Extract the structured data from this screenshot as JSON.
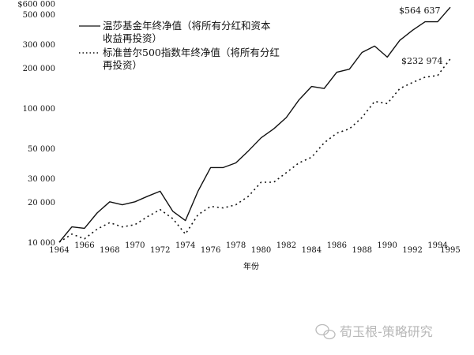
{
  "chart_data": {
    "type": "line",
    "title": "",
    "xlabel": "年份",
    "ylabel": "",
    "y_scale": "log",
    "ylim": [
      10000,
      600000
    ],
    "xlim": [
      1964,
      1995
    ],
    "grid": false,
    "legend_placement": "top-left",
    "y_ticks": [
      {
        "value": 600000,
        "label": "$600 000"
      },
      {
        "value": 500000,
        "label": "500 000"
      },
      {
        "value": 300000,
        "label": "300 000"
      },
      {
        "value": 200000,
        "label": "200 000"
      },
      {
        "value": 100000,
        "label": "100 000"
      },
      {
        "value": 50000,
        "label": "50 000"
      },
      {
        "value": 30000,
        "label": "30 000"
      },
      {
        "value": 20000,
        "label": "20 000"
      },
      {
        "value": 10000,
        "label": "10 000"
      }
    ],
    "x_ticks": [
      "1964",
      "1966",
      "1968",
      "1970",
      "1972",
      "1974",
      "1976",
      "1978",
      "1980",
      "1982",
      "1984",
      "1986",
      "1988",
      "1990",
      "1992",
      "1994",
      "1995"
    ],
    "x": [
      1964,
      1965,
      1966,
      1967,
      1968,
      1969,
      1970,
      1971,
      1972,
      1973,
      1974,
      1975,
      1976,
      1977,
      1978,
      1979,
      1980,
      1981,
      1982,
      1983,
      1984,
      1985,
      1986,
      1987,
      1988,
      1989,
      1990,
      1991,
      1992,
      1993,
      1994,
      1995
    ],
    "series": [
      {
        "name": "温莎基金年终净值（将所有分红和资本收益再投资）",
        "legend_lines": [
          "温莎基金年终净值（将所有分红和资本",
          "收益再投资）"
        ],
        "style": "solid",
        "values": [
          10000,
          13000,
          12700,
          16500,
          20000,
          19000,
          20000,
          22000,
          24000,
          17000,
          14500,
          24000,
          36000,
          36000,
          39000,
          48000,
          60000,
          70000,
          85000,
          115000,
          145000,
          140000,
          185000,
          195000,
          260000,
          290000,
          240000,
          320000,
          380000,
          440000,
          440000,
          564637
        ],
        "end_label": "$564 637"
      },
      {
        "name": "标准普尔500指数年终净值（将所有分红再投资）",
        "legend_lines": [
          "标准普尔500指数年终净值（将所有分红",
          "再投资）"
        ],
        "style": "dotted",
        "values": [
          10000,
          11500,
          10600,
          12500,
          14000,
          13000,
          13500,
          15500,
          17500,
          15000,
          11500,
          16000,
          18500,
          18000,
          19000,
          22000,
          28000,
          28000,
          33000,
          39000,
          43000,
          55000,
          65000,
          70000,
          85000,
          112000,
          108000,
          140000,
          155000,
          170000,
          175000,
          232974
        ],
        "end_label": "$232 974"
      }
    ]
  },
  "watermark": {
    "icon": "wechat-icon",
    "text": "荀玉根-策略研究"
  }
}
